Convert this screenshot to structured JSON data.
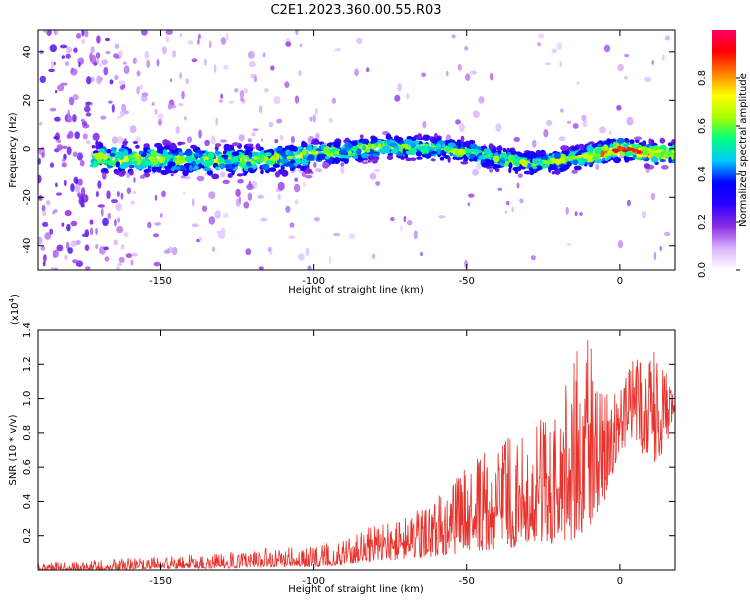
{
  "title": "C2E1.2023.360.00.55.R03",
  "chart_data": [
    {
      "type": "heatmap",
      "xlabel": "Height of straight line (km)",
      "ylabel": "Frequency (Hz)",
      "xlim": [
        -190,
        18
      ],
      "ylim": [
        -50,
        49
      ],
      "xticks": [
        -150,
        -100,
        -50,
        0
      ],
      "yticks": [
        -40,
        -20,
        0,
        20,
        40
      ],
      "ridge": {
        "description": "main frequency band center (Hz) vs height (km)",
        "x": [
          -168,
          -150,
          -130,
          -110,
          -100,
          -90,
          -75,
          -60,
          -50,
          -40,
          -30,
          -20,
          -10,
          0,
          10,
          17
        ],
        "y": [
          -4,
          -4,
          -5,
          -4,
          -2,
          -1,
          1,
          0,
          -1,
          -4,
          -6,
          -5,
          -3,
          0,
          -2,
          -2
        ]
      },
      "colorbar": {
        "label": "Normalized spectral amplitude",
        "range": [
          0,
          1
        ],
        "ticks": [
          0.0,
          0.2,
          0.4,
          0.6,
          0.8
        ],
        "tick_labels": [
          "0.0",
          "0.2",
          "0.4",
          "0.6",
          "0.8"
        ],
        "colors": [
          "#ffffff",
          "#d9b3ff",
          "#8a2be2",
          "#2a00ff",
          "#0000ff",
          "#00c8ff",
          "#00ff80",
          "#a8ff00",
          "#ffff00",
          "#ff8000",
          "#ff0000",
          "#ff0066"
        ]
      }
    },
    {
      "type": "line",
      "xlabel": "Height of straight line (km)",
      "ylabel": "SNR (10 * v/v)",
      "scale_label": "(x10",
      "scale_exp": "4",
      "scale_close": ")",
      "xlim": [
        -190,
        18
      ],
      "ylim": [
        0,
        1.4
      ],
      "xticks": [
        -150,
        -100,
        -50,
        0
      ],
      "yticks": [
        0.2,
        0.4,
        0.6,
        0.8,
        1.0,
        1.2,
        1.4
      ],
      "ytick_labels": [
        "0.2",
        "0.4",
        "0.6",
        "0.8",
        "1.0",
        "1.2",
        "1.4"
      ],
      "color": "#e8322c",
      "envelope": {
        "x": [
          -190,
          -170,
          -150,
          -130,
          -115,
          -100,
          -90,
          -80,
          -70,
          -60,
          -50,
          -40,
          -30,
          -20,
          -15,
          -10,
          -5,
          0,
          5,
          10,
          15,
          18
        ],
        "y_high": [
          0.04,
          0.06,
          0.08,
          0.1,
          0.13,
          0.14,
          0.18,
          0.27,
          0.32,
          0.42,
          0.6,
          0.75,
          0.85,
          0.95,
          1.3,
          1.35,
          1.1,
          1.05,
          1.25,
          1.3,
          1.2,
          1.0
        ],
        "y_low": [
          0.0,
          0.0,
          0.01,
          0.01,
          0.02,
          0.02,
          0.03,
          0.05,
          0.06,
          0.08,
          0.1,
          0.12,
          0.14,
          0.15,
          0.18,
          0.25,
          0.4,
          0.7,
          0.75,
          0.6,
          0.7,
          0.95
        ]
      }
    }
  ]
}
